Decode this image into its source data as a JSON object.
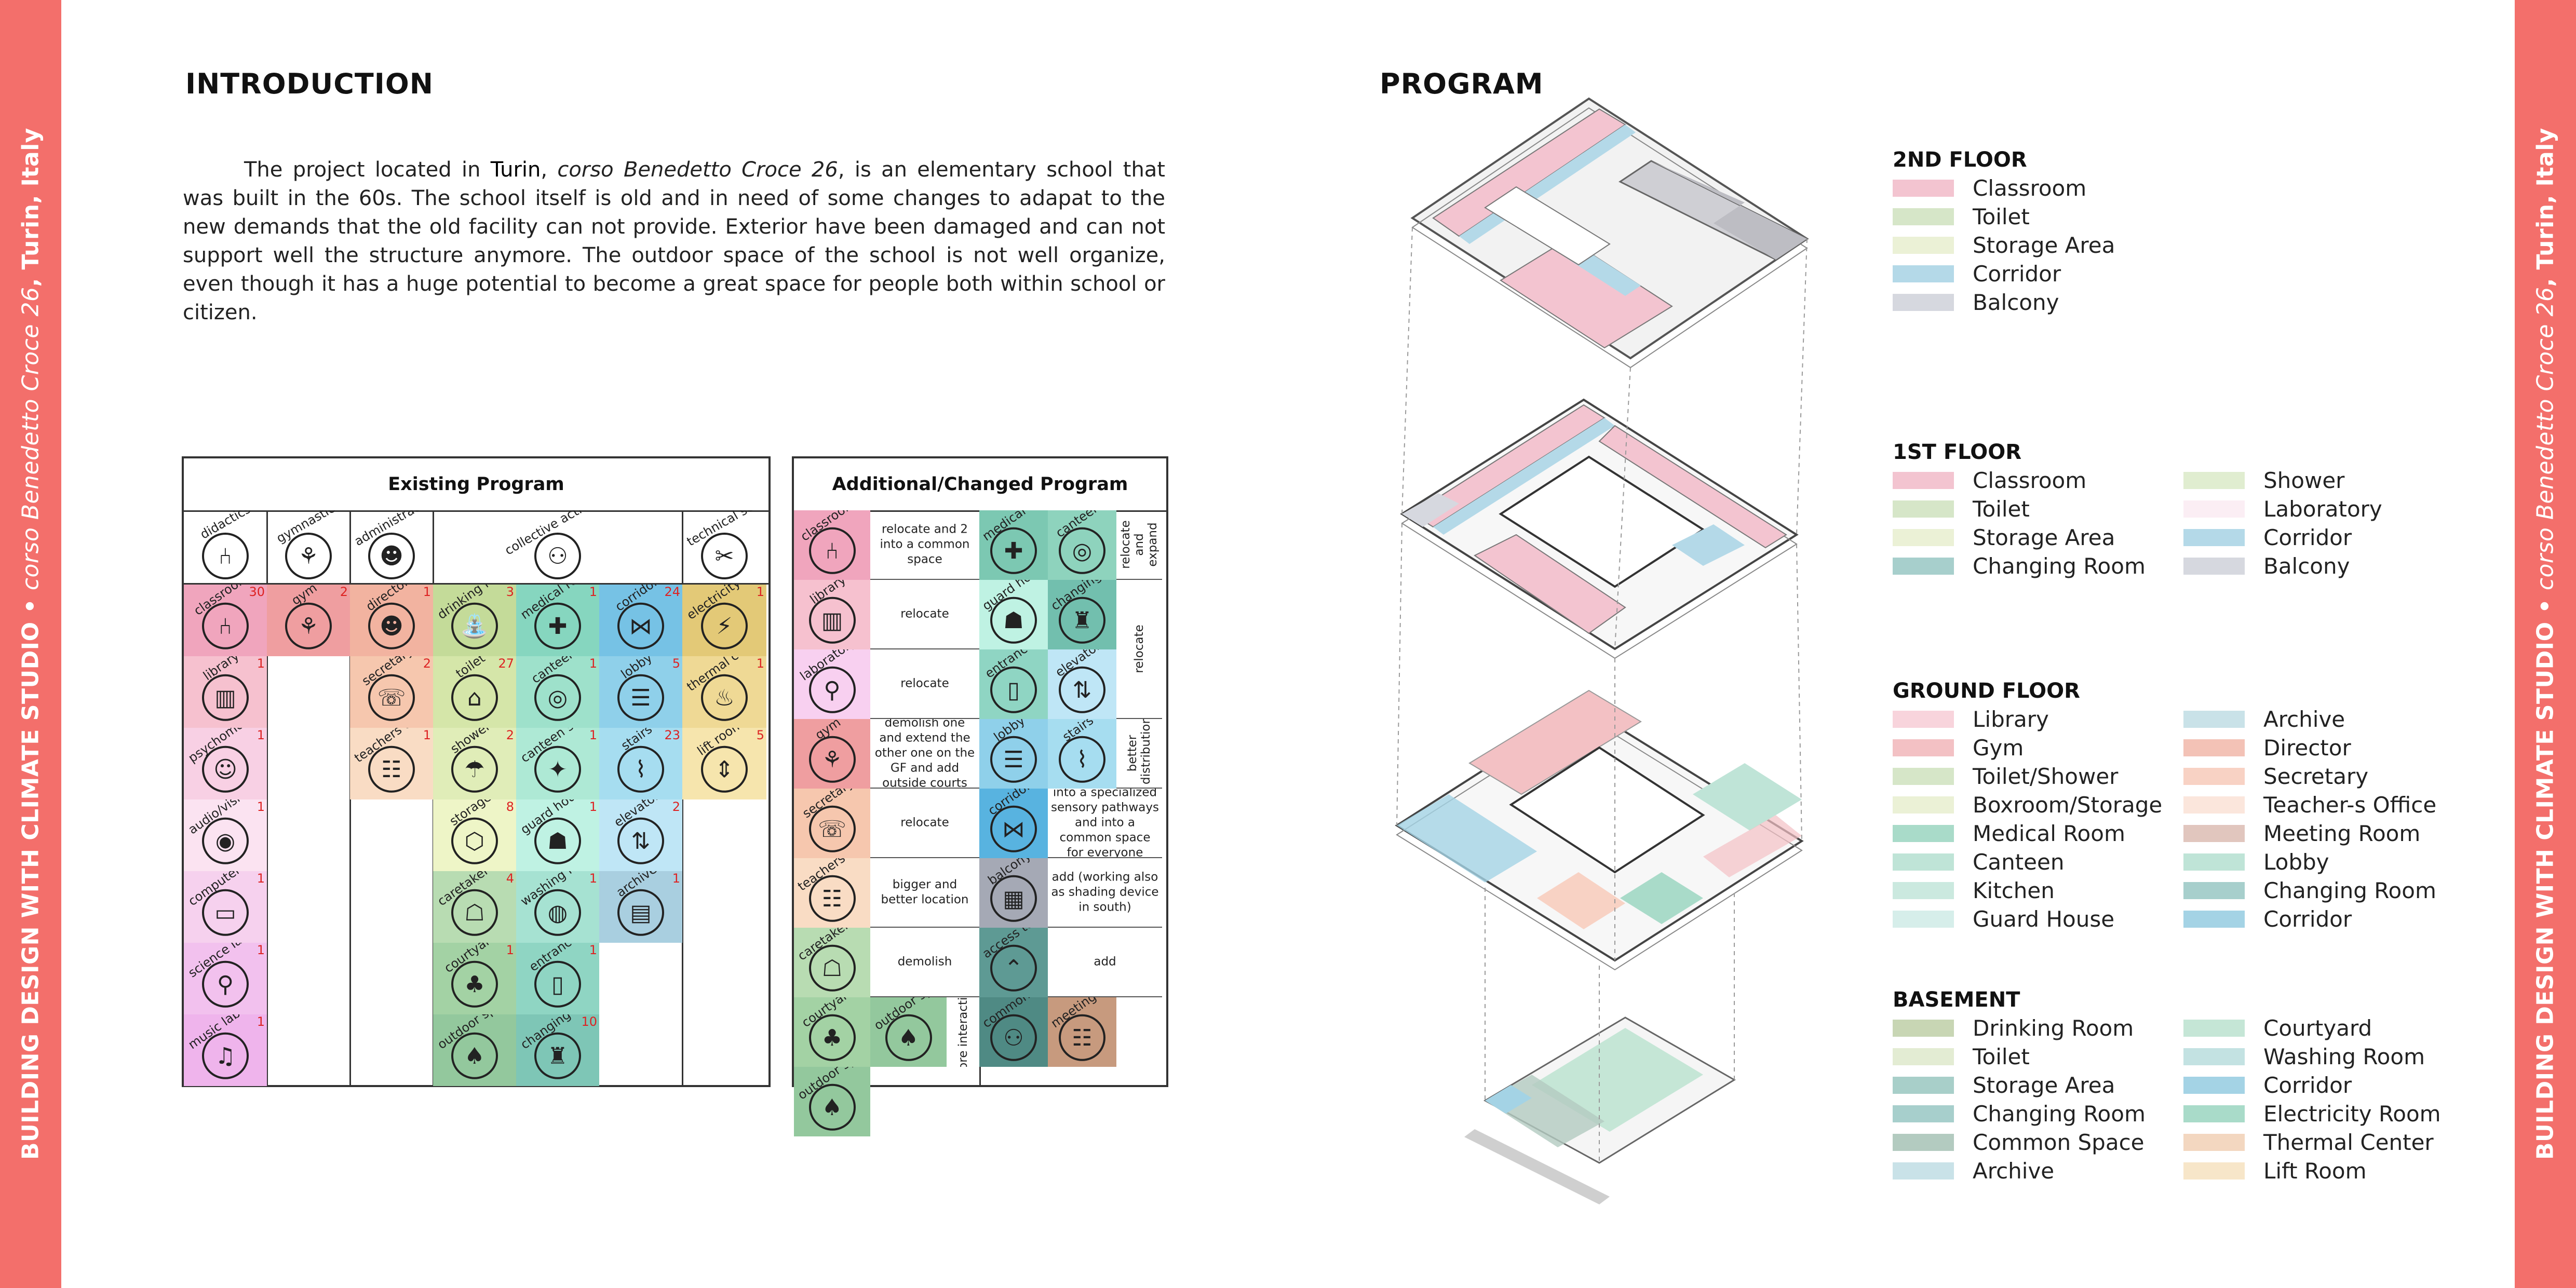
{
  "sidebar": {
    "studio": "BUILDING DESIGN WITH CLIMATE STUDIO",
    "bullet": "•",
    "street": "corso Benedetto Croce 26",
    "city": ", Turin, Italy"
  },
  "intro": {
    "title": "INTRODUCTION",
    "p_before_city": "The project located in ",
    "city": "Turin",
    "comma": ", ",
    "street": "corso Benedetto Croce 26",
    "p_rest": ", is an elementary school that was built in the 60s. The school itself is old and in need of some changes to adapat to the new demands that the old facility can not provide. Exterior have been damaged and can not support well the structure anymore. The outdoor space of the school is not well organize, even though it has a huge potential to become a great space for people both within school or citizen."
  },
  "existing": {
    "title": "Existing Program",
    "categories": [
      "didactics",
      "gymnastics",
      "administrative",
      "collective activities",
      "technical services"
    ],
    "columns": [
      [
        {
          "label": "classroom",
          "count": "30",
          "color": "#f0a5bd",
          "icon": "chair-icon"
        },
        {
          "label": "library",
          "count": "1",
          "color": "#f6c1cf",
          "icon": "books-icon"
        },
        {
          "label": "psychomotricity laboratory",
          "count": "1",
          "color": "#f8d0e4",
          "icon": "figure-icon"
        },
        {
          "label": "audio/vision laboratory",
          "count": "1",
          "color": "#fbe3f1",
          "icon": "eye-icon"
        },
        {
          "label": "computer laboratory",
          "count": "1",
          "color": "#f6d1ee",
          "icon": "computer-icon"
        },
        {
          "label": "science laboratory",
          "count": "1",
          "color": "#f2c1ee",
          "icon": "microscope-icon"
        },
        {
          "label": "music laboratory",
          "count": "1",
          "color": "#efb4ec",
          "icon": "music-icon"
        }
      ],
      [
        {
          "label": "gym",
          "count": "2",
          "color": "#ef9ea0",
          "icon": "gym-icon"
        }
      ],
      [
        {
          "label": "director",
          "count": "1",
          "color": "#f2b3a0",
          "icon": "director-icon"
        },
        {
          "label": "secretary",
          "count": "2",
          "color": "#f6c7ae",
          "icon": "secretary-icon"
        },
        {
          "label": "teachers office",
          "count": "1",
          "color": "#f9dcc4",
          "icon": "office-icon"
        }
      ],
      [
        {
          "label": "drinking fountains",
          "count": "3",
          "color": "#c4db99",
          "icon": "fountain-icon"
        },
        {
          "label": "toilet",
          "count": "27",
          "color": "#d5e6a9",
          "icon": "toilet-icon"
        },
        {
          "label": "shower",
          "count": "2",
          "color": "#e0edb8",
          "icon": "shower-icon"
        },
        {
          "label": "storage",
          "count": "8",
          "color": "#eef5c7",
          "icon": "box-icon"
        },
        {
          "label": "caretaker accomodation",
          "count": "4",
          "color": "#b8dcb2",
          "icon": "caretaker-icon"
        },
        {
          "label": "courtyard",
          "count": "1",
          "color": "#a3d2a4",
          "icon": "courtyard-icon"
        },
        {
          "label": "outdoor space",
          "count": "",
          "color": "#93c89d",
          "icon": "outdoor-icon"
        }
      ],
      [
        {
          "label": "medical room",
          "count": "1",
          "color": "#86d6bf",
          "icon": "medical-icon"
        },
        {
          "label": "canteen",
          "count": "1",
          "color": "#9ee1cb",
          "icon": "canteen-icon"
        },
        {
          "label": "canteen staff only",
          "count": "1",
          "color": "#aee9d5",
          "icon": "staff-icon"
        },
        {
          "label": "guard house",
          "count": "1",
          "color": "#bff2e3",
          "icon": "guard-icon"
        },
        {
          "label": "washing room",
          "count": "1",
          "color": "#a6e2d2",
          "icon": "washing-icon"
        },
        {
          "label": "entrance",
          "count": "1",
          "color": "#8fd5c3",
          "icon": "door-icon"
        },
        {
          "label": "changing room",
          "count": "10",
          "color": "#7ec6b6",
          "icon": "changing-icon"
        }
      ],
      [
        {
          "label": "corridor",
          "count": "24",
          "color": "#76c2e5",
          "icon": "corridor-icon"
        },
        {
          "label": "lobby",
          "count": "5",
          "color": "#8fd0ea",
          "icon": "lobby-icon"
        },
        {
          "label": "stairs",
          "count": "23",
          "color": "#a6ddf0",
          "icon": "stairs-icon"
        },
        {
          "label": "elevator",
          "count": "2",
          "color": "#bfe6f6",
          "icon": "elevator-icon"
        },
        {
          "label": "archive",
          "count": "1",
          "color": "#a9cfe0",
          "icon": "archive-icon"
        }
      ],
      [
        {
          "label": "electricity room",
          "count": "1",
          "color": "#e3c977",
          "icon": "electricity-icon"
        },
        {
          "label": "thermal center",
          "count": "1",
          "color": "#efd995",
          "icon": "thermometer-icon"
        },
        {
          "label": "lift room",
          "count": "5",
          "color": "#f6e5ad",
          "icon": "lift-icon"
        }
      ]
    ]
  },
  "additional": {
    "title": "Additional/Changed Program",
    "left": [
      {
        "label": "classroom",
        "color": "#f0a5bd",
        "icon": "chair-icon",
        "note": "relocate and 2 into a common space"
      },
      {
        "label": "library",
        "color": "#f6c1cf",
        "icon": "books-icon",
        "note": "relocate"
      },
      {
        "label": "laboratory",
        "color": "#f8d0f0",
        "icon": "microscope-icon",
        "note": "relocate"
      },
      {
        "label": "gym",
        "color": "#ef9ea0",
        "icon": "gym-icon",
        "note": "demolish one and extend the other one on the GF and add outside courts"
      },
      {
        "label": "secretary",
        "color": "#f6c7ae",
        "icon": "secretary-icon",
        "note": "relocate"
      },
      {
        "label": "teachers office",
        "color": "#f9dcc4",
        "icon": "office-icon",
        "note": "bigger and better location"
      },
      {
        "label": "caretaker accomodation",
        "color": "#b8dcb2",
        "icon": "caretaker-icon",
        "note": "demolish"
      },
      {
        "label": "courtyard",
        "color": "#a3d2a4",
        "icon": "courtyard-icon",
        "note": ""
      },
      {
        "label": "outdoor space",
        "color": "#93c89d",
        "icon": "outdoor-icon",
        "note": ""
      }
    ],
    "outdoor_note": "more interactive",
    "right": [
      {
        "label": "medical room",
        "color": "#7cc8b2",
        "icon": "medical-icon"
      },
      {
        "label": "canteen",
        "color": "#8ed3bd",
        "icon": "canteen-icon"
      },
      {
        "label": "guard house",
        "color": "#bff2e3",
        "icon": "guard-icon"
      },
      {
        "label": "changing room",
        "color": "#72bfae",
        "icon": "changing-icon"
      },
      {
        "label": "entrance",
        "color": "#8fd5c3",
        "icon": "door-icon"
      },
      {
        "label": "elevator",
        "color": "#bfe6f6",
        "icon": "elevator-icon"
      },
      {
        "label": "lobby",
        "color": "#8fd0ea",
        "icon": "lobby-icon"
      },
      {
        "label": "stairs",
        "color": "#a6ddf0",
        "icon": "stairs-icon"
      },
      {
        "label": "corridor",
        "color": "#58b3e0",
        "icon": "corridor-icon"
      },
      {
        "label": "balcony",
        "color": "#a5a9b5",
        "icon": "balcony-icon"
      },
      {
        "label": "access to the roof",
        "color": "#5e9a94",
        "icon": "roof-icon"
      },
      {
        "label": "common space",
        "color": "#4f8a84",
        "icon": "common-icon"
      },
      {
        "label": "meeting room",
        "color": "#c79a7e",
        "icon": "meeting-icon"
      }
    ],
    "notes": {
      "relocate_expand": "relocate and expand",
      "relocate": "relocate",
      "better_distribution": "better distribution",
      "corridor": "into a specialized sensory pathways and into a common space for everyone",
      "balcony": "add (working also as shading device in south)",
      "add": "add"
    }
  },
  "program": {
    "title": "PROGRAM",
    "floors": [
      {
        "name": "2ND FLOOR",
        "items": [
          {
            "label": "Classroom",
            "color": "#f3c4d0"
          },
          {
            "label": "Toilet",
            "color": "#d6e6c8"
          },
          {
            "label": "Storage Area",
            "color": "#ebf1d6"
          },
          {
            "label": "Corridor",
            "color": "#b4d9e8"
          },
          {
            "label": "Balcony",
            "color": "#d6d8df"
          }
        ]
      },
      {
        "name": "1ST FLOOR",
        "items": [
          {
            "label": "Classroom",
            "color": "#f3c4d0"
          },
          {
            "label": "Toilet",
            "color": "#d6e6c8"
          },
          {
            "label": "Storage Area",
            "color": "#ebf1d6"
          },
          {
            "label": "Changing Room",
            "color": "#a7cfcc"
          },
          {
            "label": "Shower",
            "color": "#e0edd0"
          },
          {
            "label": "Laboratory",
            "color": "#fbeef4"
          },
          {
            "label": "Corridor",
            "color": "#b4d9e8"
          },
          {
            "label": "Balcony",
            "color": "#d6d8df"
          }
        ]
      },
      {
        "name": "GROUND FLOOR",
        "items": [
          {
            "label": "Library",
            "color": "#f8d4dc"
          },
          {
            "label": "Gym",
            "color": "#f3c1c4"
          },
          {
            "label": "Toilet/Shower",
            "color": "#d6e6c8"
          },
          {
            "label": "Boxroom/Storage",
            "color": "#ebf1d6"
          },
          {
            "label": "Medical Room",
            "color": "#a9dbc9"
          },
          {
            "label": "Canteen",
            "color": "#bfe4d7"
          },
          {
            "label": "Kitchen",
            "color": "#cbe9df"
          },
          {
            "label": "Guard House",
            "color": "#d6eeea"
          },
          {
            "label": "Archive",
            "color": "#c9e2e8"
          },
          {
            "label": "Director",
            "color": "#f3c2b6"
          },
          {
            "label": "Secretary",
            "color": "#f8d2c4"
          },
          {
            "label": "Teacher-s Office",
            "color": "#fbe6dc"
          },
          {
            "label": "Meeting Room",
            "color": "#e1c6be"
          },
          {
            "label": "Lobby",
            "color": "#bfe4d7"
          },
          {
            "label": "Changing Room",
            "color": "#a7cfcc"
          },
          {
            "label": "Corridor",
            "color": "#a4d3e5"
          }
        ]
      },
      {
        "name": "BASEMENT",
        "items": [
          {
            "label": "Drinking Room",
            "color": "#c8d6b4"
          },
          {
            "label": "Toilet",
            "color": "#e3ecd3"
          },
          {
            "label": "Storage Area",
            "color": "#a8cfc9"
          },
          {
            "label": "Changing Room",
            "color": "#a7cfcc"
          },
          {
            "label": "Common Space",
            "color": "#b3cbc0"
          },
          {
            "label": "Archive",
            "color": "#c9e2e8"
          },
          {
            "label": "Courtyard",
            "color": "#c5e6d6"
          },
          {
            "label": "Washing Room",
            "color": "#c3e2e2"
          },
          {
            "label": "Corridor",
            "color": "#a4d3e5"
          },
          {
            "label": "Electricity Room",
            "color": "#a9dbc9"
          },
          {
            "label": "Thermal Center",
            "color": "#f3d7c0"
          },
          {
            "label": "Lift Room",
            "color": "#f7e6c9"
          }
        ]
      }
    ]
  }
}
